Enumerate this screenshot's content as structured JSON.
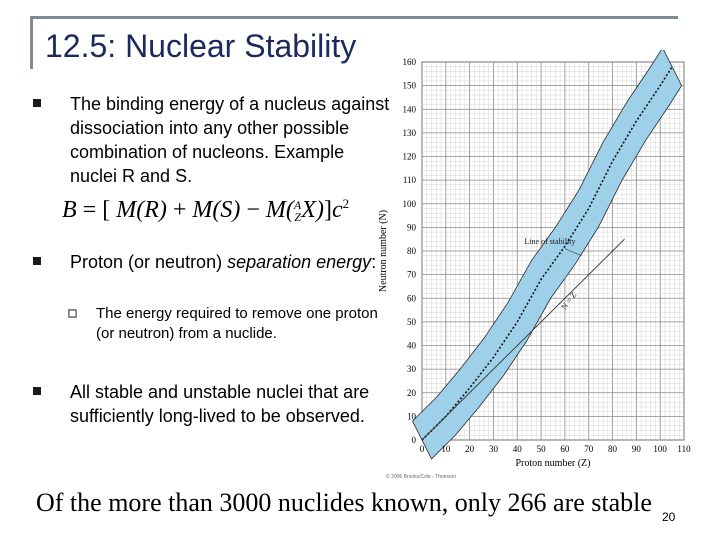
{
  "slide": {
    "title": "12.5: Nuclear Stability",
    "bullets": [
      {
        "text": "The binding energy of a nucleus against dissociation into any other possible combination of nucleons. Example nuclei R and S."
      },
      {
        "text_plain": "Proton (or neutron) ",
        "text_em": "separation energy",
        "text_tail": ":"
      },
      {
        "text": "All stable and unstable nuclei that are sufficiently long-lived to be observed."
      }
    ],
    "sub_bullet": "The energy required to remove one proton (or neutron) from a nuclide.",
    "formula": {
      "lhs": "B",
      "rhs_1": "M(R)",
      "rhs_2": "M(S)",
      "rhs_3": "M",
      "A": "A",
      "Z": "Z",
      "X": "X",
      "exp": "c",
      "power": "2"
    },
    "footer": "Of the more than 3000 nuclides known, only 266 are stable",
    "page_number": "20",
    "copyright": "© 2006 Brooks/Cole - Thomson"
  },
  "chart_data": {
    "type": "scatter",
    "title": "",
    "xlabel": "Proton number (Z)",
    "ylabel": "Neutron number (N)",
    "xlim": [
      0,
      110
    ],
    "ylim": [
      0,
      160
    ],
    "xticks": [
      0,
      10,
      20,
      30,
      40,
      50,
      60,
      70,
      80,
      90,
      100,
      110
    ],
    "yticks": [
      0,
      10,
      20,
      30,
      40,
      50,
      60,
      70,
      80,
      90,
      100,
      110,
      120,
      130,
      140,
      150,
      160
    ],
    "annotations": [
      {
        "label": "Line of stability"
      },
      {
        "label": "N = Z"
      }
    ],
    "series": [
      {
        "name": "Line of stability",
        "x": [
          0,
          10,
          20,
          30,
          40,
          50,
          60,
          70,
          80,
          90,
          100,
          105
        ],
        "y": [
          0,
          10,
          22,
          35,
          50,
          68,
          82,
          98,
          118,
          135,
          150,
          158
        ]
      },
      {
        "name": "N = Z",
        "x": [
          0,
          85
        ],
        "y": [
          0,
          85
        ]
      }
    ],
    "band_halfwidth": 8
  }
}
